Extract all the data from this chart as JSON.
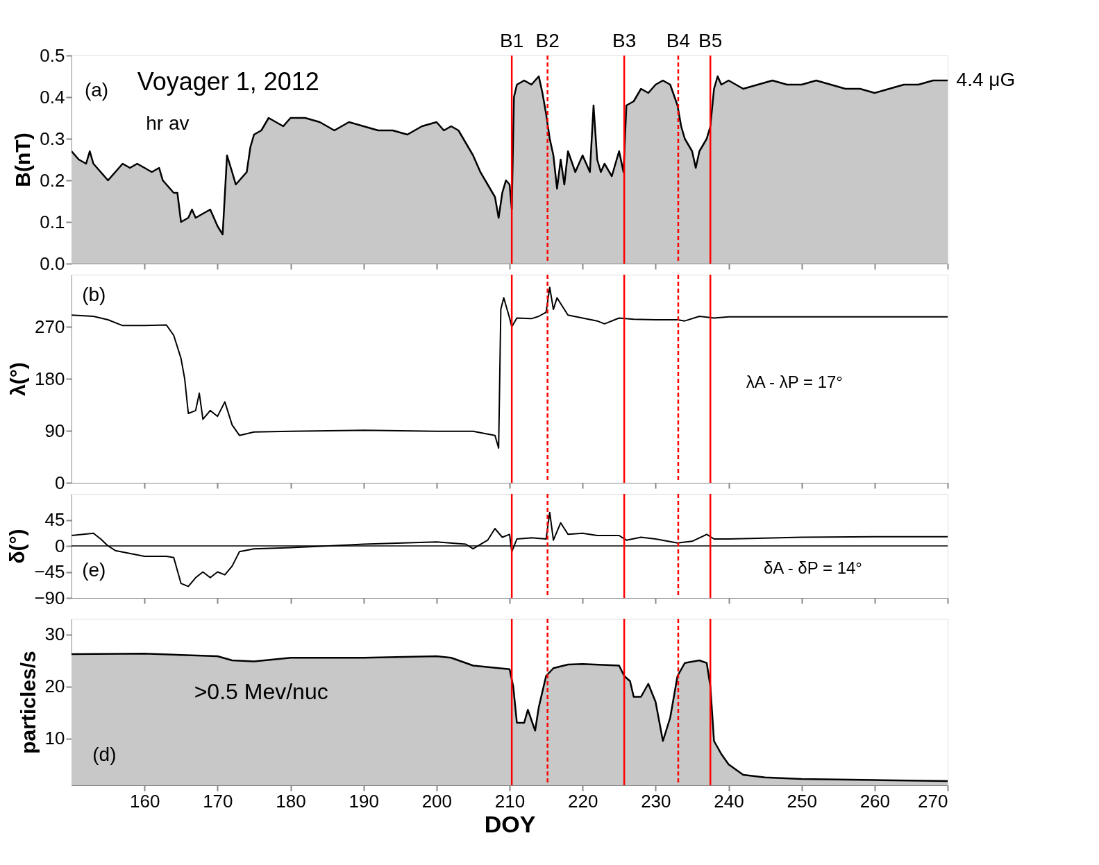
{
  "chart_data": [
    {
      "type": "area",
      "ylabel": "B(nT)",
      "xlim": [
        150,
        270
      ],
      "xticks": [
        160,
        170,
        180,
        190,
        200,
        210,
        220,
        230,
        240,
        250,
        260,
        270
      ],
      "ylim": [
        0,
        0.5
      ],
      "yticks": [
        {
          "value": 0,
          "label": "0.0"
        },
        0.1,
        0.2,
        0.3,
        0.4,
        0.5
      ],
      "tick_labels": "y",
      "grid": false,
      "annotations": [
        "Voyager 1, 2012",
        "hr av",
        "(a)",
        "4.4 μG"
      ],
      "ref_lines": [
        {
          "axis": "x",
          "value": 210.3,
          "label": "B1",
          "color": "#ff0000",
          "line_style": "solid"
        },
        {
          "axis": "x",
          "value": 215.2,
          "label": "B2",
          "color": "#ff0000",
          "line_style": "dashed"
        },
        {
          "axis": "x",
          "value": 225.7,
          "label": "B3",
          "color": "#ff0000",
          "line_style": "solid"
        },
        {
          "axis": "x",
          "value": 233.1,
          "label": "B4",
          "color": "#ff0000",
          "line_style": "dashed"
        },
        {
          "axis": "x",
          "value": 237.5,
          "label": "B5",
          "color": "#ff0000",
          "line_style": "solid"
        }
      ],
      "series": [
        {
          "color": "#c8c8c8",
          "x": [
            150,
            151,
            152,
            152.5,
            153,
            154,
            155,
            156,
            157,
            158,
            159,
            160,
            161,
            162,
            162.5,
            163,
            164,
            164.5,
            165,
            166,
            166.5,
            167,
            168,
            169,
            169.5,
            170,
            170.7,
            171.3,
            172,
            172.5,
            173,
            174,
            174.5,
            175,
            176,
            177,
            178,
            179,
            180,
            182,
            184,
            186,
            188,
            190,
            192,
            194,
            196,
            198,
            200,
            201,
            202,
            203,
            204,
            205,
            206,
            207,
            208,
            208.5,
            209,
            209.5,
            210,
            210.3,
            210.6,
            211,
            212,
            213,
            214,
            214.5,
            215,
            215.5,
            216,
            216.5,
            217,
            217.5,
            218,
            219,
            220,
            221,
            221.5,
            222,
            222.5,
            223,
            224,
            225,
            225.6,
            226,
            227,
            228,
            229,
            230,
            231,
            232,
            233,
            233.5,
            234,
            235,
            235.5,
            236,
            237,
            237.5,
            238,
            238.5,
            239,
            240,
            242,
            244,
            246,
            248,
            250,
            252,
            254,
            256,
            258,
            260,
            262,
            264,
            266,
            268,
            270
          ],
          "values": [
            0.27,
            0.25,
            0.24,
            0.27,
            0.24,
            0.22,
            0.2,
            0.22,
            0.24,
            0.23,
            0.24,
            0.23,
            0.22,
            0.23,
            0.2,
            0.19,
            0.17,
            0.17,
            0.1,
            0.11,
            0.13,
            0.11,
            0.12,
            0.13,
            0.11,
            0.09,
            0.07,
            0.26,
            0.22,
            0.19,
            0.2,
            0.22,
            0.28,
            0.31,
            0.32,
            0.35,
            0.34,
            0.33,
            0.35,
            0.35,
            0.34,
            0.32,
            0.34,
            0.33,
            0.32,
            0.32,
            0.31,
            0.33,
            0.34,
            0.32,
            0.33,
            0.32,
            0.29,
            0.26,
            0.22,
            0.19,
            0.16,
            0.11,
            0.17,
            0.2,
            0.19,
            0.13,
            0.4,
            0.43,
            0.44,
            0.43,
            0.45,
            0.41,
            0.36,
            0.3,
            0.26,
            0.18,
            0.25,
            0.19,
            0.27,
            0.22,
            0.26,
            0.22,
            0.38,
            0.25,
            0.22,
            0.24,
            0.21,
            0.27,
            0.22,
            0.38,
            0.39,
            0.42,
            0.41,
            0.43,
            0.44,
            0.43,
            0.38,
            0.33,
            0.3,
            0.27,
            0.23,
            0.27,
            0.3,
            0.33,
            0.42,
            0.45,
            0.43,
            0.44,
            0.42,
            0.43,
            0.44,
            0.43,
            0.43,
            0.44,
            0.43,
            0.42,
            0.42,
            0.41,
            0.42,
            0.43,
            0.43,
            0.44,
            0.44
          ]
        }
      ]
    },
    {
      "type": "line",
      "ylabel": "λ(°)",
      "xlim": [
        150,
        270
      ],
      "xticks": [
        160,
        170,
        180,
        190,
        200,
        210,
        220,
        230,
        240,
        250,
        260,
        270
      ],
      "ylim": [
        0,
        360
      ],
      "yticks": [
        0,
        90,
        180,
        270
      ],
      "tick_labels": "y",
      "grid": false,
      "annotations": [
        "(b)",
        "λA - λP = 17°"
      ],
      "ref_lines": [
        {
          "axis": "x",
          "value": 210.3,
          "color": "#ff0000",
          "line_style": "solid"
        },
        {
          "axis": "x",
          "value": 215.2,
          "color": "#ff0000",
          "line_style": "dashed"
        },
        {
          "axis": "x",
          "value": 225.7,
          "color": "#ff0000",
          "line_style": "solid"
        },
        {
          "axis": "x",
          "value": 233.1,
          "color": "#ff0000",
          "line_style": "dashed"
        },
        {
          "axis": "x",
          "value": 237.5,
          "color": "#ff0000",
          "line_style": "solid"
        }
      ],
      "series": [
        {
          "color": "#000000",
          "x": [
            150,
            153,
            155,
            157,
            160,
            163,
            164,
            165,
            165.5,
            166,
            167,
            167.5,
            168,
            169,
            170,
            171,
            172,
            173,
            175,
            180,
            190,
            200,
            205,
            208,
            208.5,
            208.8,
            209.2,
            210,
            210.3,
            211,
            213,
            214,
            215,
            215.5,
            216,
            216.5,
            217,
            218,
            220,
            222,
            223,
            225,
            227,
            230,
            233,
            234,
            236,
            238,
            240,
            250,
            260,
            270
          ],
          "values": [
            290,
            288,
            282,
            272,
            272,
            273,
            255,
            215,
            180,
            120,
            125,
            155,
            110,
            125,
            115,
            140,
            100,
            82,
            88,
            89,
            91,
            89,
            89,
            82,
            60,
            300,
            320,
            285,
            270,
            285,
            284,
            288,
            295,
            338,
            300,
            320,
            310,
            290,
            285,
            280,
            275,
            285,
            283,
            282,
            282,
            280,
            288,
            285,
            287,
            287,
            287,
            287
          ]
        }
      ]
    },
    {
      "type": "line",
      "ylabel": "δ(°)",
      "xlim": [
        150,
        270
      ],
      "xticks": [
        160,
        170,
        180,
        190,
        200,
        210,
        220,
        230,
        240,
        250,
        260,
        270
      ],
      "ylim": [
        -90,
        90
      ],
      "yticks": [
        -90,
        -45,
        0,
        45
      ],
      "tick_labels": "y",
      "grid": false,
      "annotations": [
        "(e)",
        "δA - δP = 14°"
      ],
      "ref_lines": [
        {
          "axis": "y",
          "value": 0,
          "color": "#000000",
          "line_style": "solid"
        },
        {
          "axis": "x",
          "value": 210.3,
          "color": "#ff0000",
          "line_style": "solid"
        },
        {
          "axis": "x",
          "value": 215.2,
          "color": "#ff0000",
          "line_style": "dashed"
        },
        {
          "axis": "x",
          "value": 225.7,
          "color": "#ff0000",
          "line_style": "solid"
        },
        {
          "axis": "x",
          "value": 233.1,
          "color": "#ff0000",
          "line_style": "dashed"
        },
        {
          "axis": "x",
          "value": 237.5,
          "color": "#ff0000",
          "line_style": "solid"
        }
      ],
      "series": [
        {
          "color": "#000000",
          "x": [
            150,
            153,
            154,
            155,
            156,
            160,
            163,
            164,
            165,
            166,
            167,
            168,
            169,
            170,
            171,
            172,
            173,
            175,
            180,
            190,
            200,
            204,
            205,
            207,
            208,
            209,
            210,
            210.3,
            211,
            213,
            215,
            215.5,
            216,
            217,
            218,
            220,
            222,
            225,
            226,
            228,
            230,
            233,
            235,
            237,
            238,
            240,
            250,
            260,
            270
          ],
          "values": [
            18,
            22,
            12,
            0,
            -8,
            -18,
            -18,
            -20,
            -65,
            -70,
            -55,
            -45,
            -55,
            -45,
            -50,
            -35,
            -10,
            -5,
            -3,
            3,
            7,
            3,
            -5,
            10,
            30,
            15,
            20,
            -10,
            12,
            14,
            12,
            58,
            10,
            40,
            20,
            22,
            18,
            18,
            10,
            15,
            12,
            5,
            8,
            20,
            12,
            12,
            15,
            16,
            16
          ]
        }
      ]
    },
    {
      "type": "area",
      "xlabel": "DOY",
      "ylabel": "particles/s",
      "xlim": [
        150,
        270
      ],
      "xticks": [
        160,
        170,
        180,
        190,
        200,
        210,
        220,
        230,
        240,
        250,
        260,
        270
      ],
      "ylim": [
        1,
        33
      ],
      "yticks": [
        10,
        20,
        30
      ],
      "grid": false,
      "annotations": [
        ">0.5 Mev/nuc",
        "(d)"
      ],
      "ref_lines": [
        {
          "axis": "x",
          "value": 210.3,
          "color": "#ff0000",
          "line_style": "solid"
        },
        {
          "axis": "x",
          "value": 215.2,
          "color": "#ff0000",
          "line_style": "dashed"
        },
        {
          "axis": "x",
          "value": 225.7,
          "color": "#ff0000",
          "line_style": "solid"
        },
        {
          "axis": "x",
          "value": 233.1,
          "color": "#ff0000",
          "line_style": "dashed"
        },
        {
          "axis": "x",
          "value": 237.5,
          "color": "#ff0000",
          "line_style": "solid"
        }
      ],
      "series": [
        {
          "color": "#c8c8c8",
          "x": [
            150,
            160,
            170,
            172,
            175,
            180,
            190,
            200,
            202,
            205,
            210,
            210.5,
            211,
            212,
            212.5,
            213.5,
            214,
            215,
            216,
            218,
            220,
            225,
            225.7,
            226.5,
            227,
            228,
            229,
            230,
            231,
            232,
            233,
            234,
            236,
            237,
            237.5,
            238,
            239,
            240,
            242,
            245,
            250,
            260,
            270
          ],
          "values": [
            26.2,
            26.3,
            25.8,
            25.0,
            24.8,
            25.5,
            25.5,
            25.8,
            25.5,
            24.0,
            23.3,
            20,
            13,
            13,
            15.5,
            11.5,
            16,
            22,
            23.5,
            24.2,
            24.3,
            24,
            22,
            21,
            18,
            18,
            20.5,
            17,
            9.5,
            14,
            22,
            24.5,
            25,
            24.5,
            20,
            9.5,
            7,
            5,
            3,
            2.5,
            2.2,
            2,
            1.8
          ]
        }
      ]
    }
  ]
}
